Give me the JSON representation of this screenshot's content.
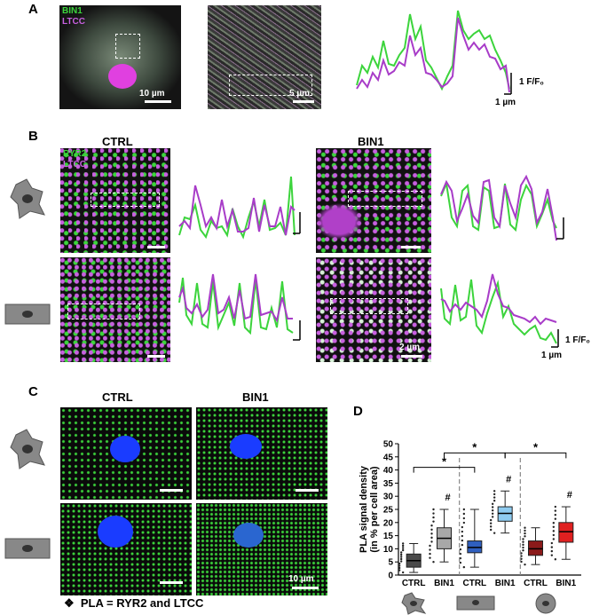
{
  "panels": {
    "A": {
      "letter": "A",
      "legend_green": "BIN1",
      "legend_magenta": "LTCC",
      "scale_left": "10 µm",
      "scale_right": "5 µm",
      "yscale": "1 F/F₀",
      "xscale": "1 µm"
    },
    "B": {
      "letter": "B",
      "col_ctrl": "CTRL",
      "col_bin1": "BIN1",
      "legend_green": "RYR2",
      "legend_magenta": "LTCC",
      "scale_bottom": "2 µm",
      "yscale": "1 F/F₀",
      "xscale": "1 µm"
    },
    "C": {
      "letter": "C",
      "col_ctrl": "CTRL",
      "col_bin1": "BIN1",
      "scale": "10 µm"
    },
    "D": {
      "letter": "D",
      "ylabel_line1": "PLA signal density",
      "ylabel_line2": "(in % per cell area)",
      "yticks": [
        "0",
        "5",
        "10",
        "15",
        "20",
        "25",
        "30",
        "35",
        "40",
        "45",
        "50"
      ],
      "groups": [
        "CTRL",
        "BIN1",
        "CTRL",
        "BIN1",
        "CTRL",
        "BIN1"
      ],
      "hash": "#",
      "star": "*"
    }
  },
  "footnote": {
    "bullet": "❖",
    "text": "PLA = RYR2 and LTCC"
  },
  "chart_data": {
    "type": "box",
    "ylabel": "PLA signal density (in % per cell area)",
    "ylim": [
      0,
      50
    ],
    "categories": [
      "CTRL",
      "BIN1",
      "CTRL",
      "BIN1",
      "CTRL",
      "BIN1"
    ],
    "series": [
      {
        "q1": 3,
        "median": 5.5,
        "q3": 8,
        "min": 1,
        "max": 12,
        "color": "#4a4a4a"
      },
      {
        "q1": 10,
        "median": 14,
        "q3": 18,
        "min": 5,
        "max": 25,
        "color": "#a8a8a8"
      },
      {
        "q1": 8.5,
        "median": 10.5,
        "q3": 13,
        "min": 3,
        "max": 25,
        "color": "#2f5fbf"
      },
      {
        "q1": 20.5,
        "median": 23.5,
        "q3": 26,
        "min": 16,
        "max": 32,
        "color": "#8ecbf0"
      },
      {
        "q1": 7.5,
        "median": 10,
        "q3": 13,
        "min": 4,
        "max": 18,
        "color": "#8b1a1a"
      },
      {
        "q1": 12.5,
        "median": 16.5,
        "q3": 20,
        "min": 6,
        "max": 26,
        "color": "#e02020"
      }
    ]
  },
  "colors": {
    "green": "#3cd43c",
    "magenta": "#a83cc8",
    "nucleus": "#1a3cff"
  }
}
